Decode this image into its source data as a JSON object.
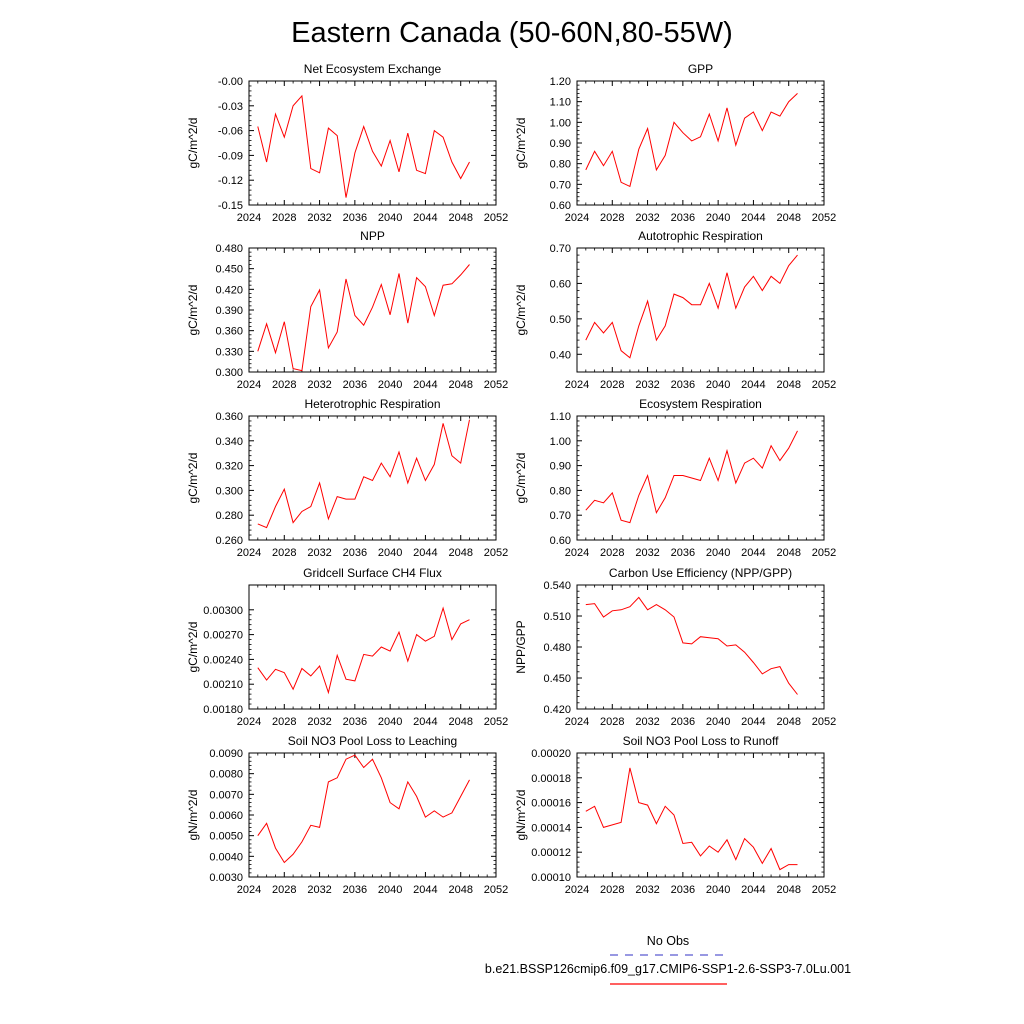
{
  "figure": {
    "title": "Eastern Canada (50-60N,80-55W)",
    "series_color": "#ff0000"
  },
  "legend": {
    "entries": [
      {
        "label": "No Obs",
        "color": "#5a5ad0",
        "style": "dashed"
      },
      {
        "label": "b.e21.BSSP126cmip6.f09_g17.CMIP6-SSP1-2.6-SSP3-7.0Lu.001",
        "color": "#ff0000",
        "style": "solid"
      }
    ]
  },
  "chart_data": [
    {
      "type": "line",
      "title": "Net Ecosystem Exchange",
      "ylabel": "gC/m^2/d",
      "xlim": [
        2024,
        2052
      ],
      "xticks": [
        "2024",
        "2028",
        "2032",
        "2036",
        "2040",
        "2044",
        "2048",
        "2052"
      ],
      "ylim": [
        -0.15,
        0.0
      ],
      "yticks": [
        "-0.15",
        "-0.12",
        "-0.09",
        "-0.06",
        "-0.03",
        "-0.00"
      ],
      "x": [
        2025,
        2026,
        2027,
        2028,
        2029,
        2030,
        2031,
        2032,
        2033,
        2034,
        2035,
        2036,
        2037,
        2038,
        2039,
        2040,
        2041,
        2042,
        2043,
        2044,
        2045,
        2046,
        2047,
        2048,
        2049
      ],
      "values": [
        -0.055,
        -0.098,
        -0.04,
        -0.068,
        -0.03,
        -0.018,
        -0.106,
        -0.111,
        -0.057,
        -0.066,
        -0.141,
        -0.087,
        -0.055,
        -0.085,
        -0.103,
        -0.072,
        -0.11,
        -0.063,
        -0.108,
        -0.112,
        -0.06,
        -0.068,
        -0.098,
        -0.118,
        -0.098
      ]
    },
    {
      "type": "line",
      "title": "GPP",
      "ylabel": "gC/m^2/d",
      "xlim": [
        2024,
        2052
      ],
      "xticks": [
        "2024",
        "2028",
        "2032",
        "2036",
        "2040",
        "2044",
        "2048",
        "2052"
      ],
      "ylim": [
        0.6,
        1.2
      ],
      "yticks": [
        "0.60",
        "0.70",
        "0.80",
        "0.90",
        "1.00",
        "1.10",
        "1.20"
      ],
      "x": [
        2025,
        2026,
        2027,
        2028,
        2029,
        2030,
        2031,
        2032,
        2033,
        2034,
        2035,
        2036,
        2037,
        2038,
        2039,
        2040,
        2041,
        2042,
        2043,
        2044,
        2045,
        2046,
        2047,
        2048,
        2049
      ],
      "values": [
        0.77,
        0.86,
        0.79,
        0.86,
        0.71,
        0.69,
        0.87,
        0.97,
        0.77,
        0.84,
        1.0,
        0.95,
        0.91,
        0.93,
        1.04,
        0.91,
        1.07,
        0.89,
        1.02,
        1.05,
        0.96,
        1.05,
        1.03,
        1.1,
        1.14
      ]
    },
    {
      "type": "line",
      "title": "NPP",
      "ylabel": "gC/m^2/d",
      "xlim": [
        2024,
        2052
      ],
      "xticks": [
        "2024",
        "2028",
        "2032",
        "2036",
        "2040",
        "2044",
        "2048",
        "2052"
      ],
      "ylim": [
        0.3,
        0.48
      ],
      "yticks": [
        "0.300",
        "0.330",
        "0.360",
        "0.390",
        "0.420",
        "0.450",
        "0.480"
      ],
      "x": [
        2025,
        2026,
        2027,
        2028,
        2029,
        2030,
        2031,
        2032,
        2033,
        2034,
        2035,
        2036,
        2037,
        2038,
        2039,
        2040,
        2041,
        2042,
        2043,
        2044,
        2045,
        2046,
        2047,
        2048,
        2049
      ],
      "values": [
        0.33,
        0.37,
        0.328,
        0.373,
        0.305,
        0.302,
        0.395,
        0.419,
        0.335,
        0.358,
        0.435,
        0.382,
        0.368,
        0.394,
        0.427,
        0.383,
        0.443,
        0.371,
        0.437,
        0.424,
        0.382,
        0.426,
        0.428,
        0.441,
        0.456
      ]
    },
    {
      "type": "line",
      "title": "Autotrophic Respiration",
      "ylabel": "gC/m^2/d",
      "xlim": [
        2024,
        2052
      ],
      "xticks": [
        "2024",
        "2028",
        "2032",
        "2036",
        "2040",
        "2044",
        "2048",
        "2052"
      ],
      "ylim": [
        0.35,
        0.7
      ],
      "yticks": [
        "0.40",
        "0.50",
        "0.60",
        "0.70"
      ],
      "x": [
        2025,
        2026,
        2027,
        2028,
        2029,
        2030,
        2031,
        2032,
        2033,
        2034,
        2035,
        2036,
        2037,
        2038,
        2039,
        2040,
        2041,
        2042,
        2043,
        2044,
        2045,
        2046,
        2047,
        2048,
        2049
      ],
      "values": [
        0.44,
        0.49,
        0.46,
        0.49,
        0.41,
        0.39,
        0.48,
        0.55,
        0.44,
        0.48,
        0.57,
        0.56,
        0.54,
        0.54,
        0.6,
        0.53,
        0.63,
        0.53,
        0.59,
        0.62,
        0.58,
        0.62,
        0.6,
        0.65,
        0.68
      ]
    },
    {
      "type": "line",
      "title": "Heterotrophic Respiration",
      "ylabel": "gC/m^2/d",
      "xlim": [
        2024,
        2052
      ],
      "xticks": [
        "2024",
        "2028",
        "2032",
        "2036",
        "2040",
        "2044",
        "2048",
        "2052"
      ],
      "ylim": [
        0.26,
        0.36
      ],
      "yticks": [
        "0.260",
        "0.280",
        "0.300",
        "0.320",
        "0.340",
        "0.360"
      ],
      "x": [
        2025,
        2026,
        2027,
        2028,
        2029,
        2030,
        2031,
        2032,
        2033,
        2034,
        2035,
        2036,
        2037,
        2038,
        2039,
        2040,
        2041,
        2042,
        2043,
        2044,
        2045,
        2046,
        2047,
        2048,
        2049
      ],
      "values": [
        0.273,
        0.27,
        0.287,
        0.301,
        0.274,
        0.283,
        0.287,
        0.306,
        0.277,
        0.295,
        0.293,
        0.293,
        0.311,
        0.308,
        0.322,
        0.311,
        0.331,
        0.306,
        0.326,
        0.308,
        0.321,
        0.354,
        0.328,
        0.322,
        0.357
      ]
    },
    {
      "type": "line",
      "title": "Ecosystem Respiration",
      "ylabel": "gC/m^2/d",
      "xlim": [
        2024,
        2052
      ],
      "xticks": [
        "2024",
        "2028",
        "2032",
        "2036",
        "2040",
        "2044",
        "2048",
        "2052"
      ],
      "ylim": [
        0.6,
        1.1
      ],
      "yticks": [
        "0.60",
        "0.70",
        "0.80",
        "0.90",
        "1.00",
        "1.10"
      ],
      "x": [
        2025,
        2026,
        2027,
        2028,
        2029,
        2030,
        2031,
        2032,
        2033,
        2034,
        2035,
        2036,
        2037,
        2038,
        2039,
        2040,
        2041,
        2042,
        2043,
        2044,
        2045,
        2046,
        2047,
        2048,
        2049
      ],
      "values": [
        0.72,
        0.76,
        0.75,
        0.79,
        0.68,
        0.67,
        0.78,
        0.86,
        0.71,
        0.77,
        0.86,
        0.86,
        0.85,
        0.84,
        0.93,
        0.84,
        0.96,
        0.83,
        0.91,
        0.93,
        0.89,
        0.98,
        0.92,
        0.97,
        1.04
      ]
    },
    {
      "type": "line",
      "title": "Gridcell Surface CH4 Flux",
      "ylabel": "gC/m^2/d",
      "xlim": [
        2024,
        2052
      ],
      "xticks": [
        "2024",
        "2028",
        "2032",
        "2036",
        "2040",
        "2044",
        "2048",
        "2052"
      ],
      "ylim": [
        0.0018,
        0.0033
      ],
      "yticks": [
        "0.00180",
        "0.00210",
        "0.00240",
        "0.00270",
        "0.00300"
      ],
      "x": [
        2025,
        2026,
        2027,
        2028,
        2029,
        2030,
        2031,
        2032,
        2033,
        2034,
        2035,
        2036,
        2037,
        2038,
        2039,
        2040,
        2041,
        2042,
        2043,
        2044,
        2045,
        2046,
        2047,
        2048,
        2049
      ],
      "values": [
        0.0023,
        0.00215,
        0.00228,
        0.00224,
        0.00204,
        0.00229,
        0.0022,
        0.00232,
        0.002,
        0.00245,
        0.00216,
        0.00214,
        0.00246,
        0.00244,
        0.00255,
        0.0025,
        0.00273,
        0.00238,
        0.0027,
        0.00262,
        0.00268,
        0.00302,
        0.00264,
        0.00283,
        0.00288
      ]
    },
    {
      "type": "line",
      "title": "Carbon Use Efficiency (NPP/GPP)",
      "ylabel": "NPP/GPP",
      "xlim": [
        2024,
        2052
      ],
      "xticks": [
        "2024",
        "2028",
        "2032",
        "2036",
        "2040",
        "2044",
        "2048",
        "2052"
      ],
      "ylim": [
        0.42,
        0.54
      ],
      "yticks": [
        "0.420",
        "0.450",
        "0.480",
        "0.510",
        "0.540"
      ],
      "x": [
        2025,
        2026,
        2027,
        2028,
        2029,
        2030,
        2031,
        2032,
        2033,
        2034,
        2035,
        2036,
        2037,
        2038,
        2039,
        2040,
        2041,
        2042,
        2043,
        2044,
        2045,
        2046,
        2047,
        2048,
        2049
      ],
      "values": [
        0.521,
        0.522,
        0.509,
        0.515,
        0.516,
        0.519,
        0.528,
        0.516,
        0.521,
        0.516,
        0.509,
        0.484,
        0.483,
        0.49,
        0.489,
        0.488,
        0.481,
        0.482,
        0.475,
        0.465,
        0.454,
        0.459,
        0.461,
        0.445,
        0.434
      ]
    },
    {
      "type": "line",
      "title": "Soil NO3 Pool Loss to Leaching",
      "ylabel": "gN/m^2/d",
      "xlim": [
        2024,
        2052
      ],
      "xticks": [
        "2024",
        "2028",
        "2032",
        "2036",
        "2040",
        "2044",
        "2048",
        "2052"
      ],
      "ylim": [
        0.003,
        0.009
      ],
      "yticks": [
        "0.0030",
        "0.0040",
        "0.0050",
        "0.0060",
        "0.0070",
        "0.0080",
        "0.0090"
      ],
      "x": [
        2025,
        2026,
        2027,
        2028,
        2029,
        2030,
        2031,
        2032,
        2033,
        2034,
        2035,
        2036,
        2037,
        2038,
        2039,
        2040,
        2041,
        2042,
        2043,
        2044,
        2045,
        2046,
        2047,
        2048,
        2049
      ],
      "values": [
        0.005,
        0.0056,
        0.0044,
        0.0037,
        0.0041,
        0.0047,
        0.0055,
        0.0054,
        0.0076,
        0.0078,
        0.0087,
        0.0089,
        0.0083,
        0.0087,
        0.0078,
        0.0066,
        0.0063,
        0.0076,
        0.0069,
        0.0059,
        0.0062,
        0.0059,
        0.0061,
        0.0069,
        0.0077
      ]
    },
    {
      "type": "line",
      "title": "Soil NO3 Pool Loss to Runoff",
      "ylabel": "gN/m^2/d",
      "xlim": [
        2024,
        2052
      ],
      "xticks": [
        "2024",
        "2028",
        "2032",
        "2036",
        "2040",
        "2044",
        "2048",
        "2052"
      ],
      "ylim": [
        0.0001,
        0.0002
      ],
      "yticks": [
        "0.00010",
        "0.00012",
        "0.00014",
        "0.00016",
        "0.00018",
        "0.00020"
      ],
      "x": [
        2025,
        2026,
        2027,
        2028,
        2029,
        2030,
        2031,
        2032,
        2033,
        2034,
        2035,
        2036,
        2037,
        2038,
        2039,
        2040,
        2041,
        2042,
        2043,
        2044,
        2045,
        2046,
        2047,
        2048,
        2049
      ],
      "values": [
        0.000153,
        0.000157,
        0.00014,
        0.000142,
        0.000144,
        0.000188,
        0.00016,
        0.000158,
        0.000143,
        0.000157,
        0.00015,
        0.000127,
        0.000128,
        0.000117,
        0.000125,
        0.00012,
        0.00013,
        0.000114,
        0.000131,
        0.000124,
        0.000111,
        0.000123,
        0.000106,
        0.00011,
        0.00011
      ]
    }
  ]
}
